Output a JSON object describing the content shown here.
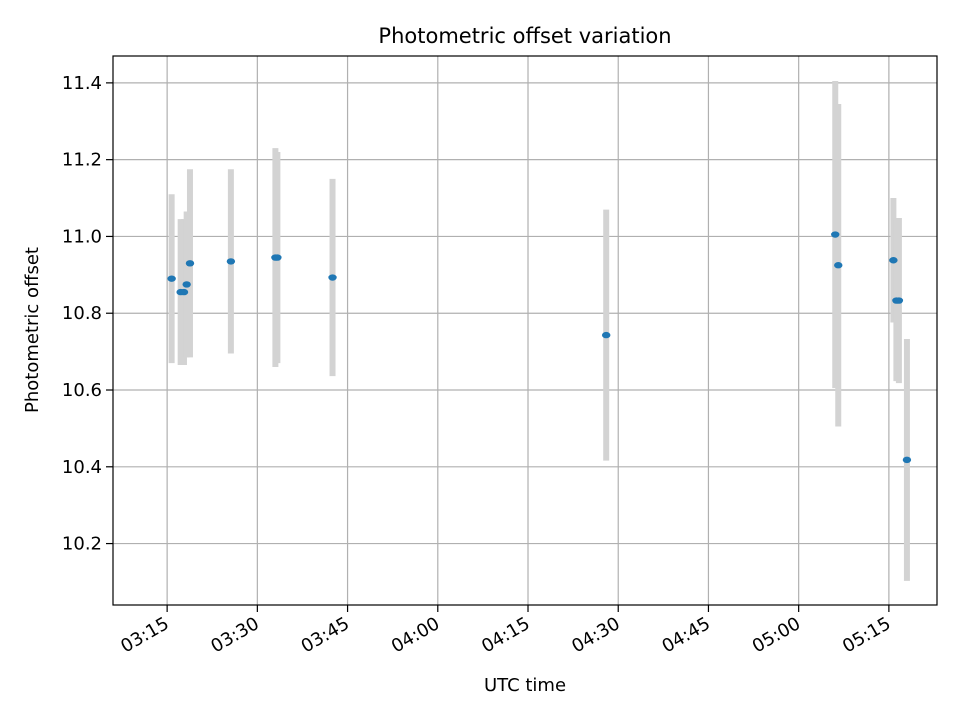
{
  "chart_data": {
    "type": "scatter",
    "title": "Photometric offset variation",
    "xlabel": "UTC time",
    "ylabel": "Photometric offset",
    "x_axis": "time (UTC, HH:MM)",
    "xlim": [
      "03:06",
      "05:23"
    ],
    "ylim": [
      10.04,
      11.47
    ],
    "grid": true,
    "xticks": [
      "03:15",
      "03:30",
      "03:45",
      "04:00",
      "04:15",
      "04:30",
      "04:45",
      "05:00",
      "05:15"
    ],
    "yticks": [
      10.2,
      10.4,
      10.6,
      10.8,
      11.0,
      11.2,
      11.4
    ],
    "marker_color": "#1f77b4",
    "errorbar_color": "#d3d3d3",
    "points": [
      {
        "time": "03:15:45",
        "y": 10.89,
        "err": 0.22
      },
      {
        "time": "03:17:15",
        "y": 10.855,
        "err": 0.19
      },
      {
        "time": "03:17:48",
        "y": 10.855,
        "err": 0.19
      },
      {
        "time": "03:18:15",
        "y": 10.875,
        "err": 0.19
      },
      {
        "time": "03:18:48",
        "y": 10.93,
        "err": 0.245
      },
      {
        "time": "03:25:36",
        "y": 10.935,
        "err": 0.24
      },
      {
        "time": "03:33:00",
        "y": 10.945,
        "err": 0.285
      },
      {
        "time": "03:33:20",
        "y": 10.945,
        "err": 0.275
      },
      {
        "time": "03:42:30",
        "y": 10.893,
        "err": 0.257
      },
      {
        "time": "04:28:00",
        "y": 10.743,
        "err": 0.327
      },
      {
        "time": "05:06:05",
        "y": 11.005,
        "err": 0.4
      },
      {
        "time": "05:06:35",
        "y": 10.925,
        "err": 0.42
      },
      {
        "time": "05:15:45",
        "y": 10.938,
        "err": 0.162
      },
      {
        "time": "05:16:15",
        "y": 10.833,
        "err": 0.21
      },
      {
        "time": "05:16:40",
        "y": 10.833,
        "err": 0.215
      },
      {
        "time": "05:18:00",
        "y": 10.418,
        "err": 0.315
      }
    ]
  }
}
